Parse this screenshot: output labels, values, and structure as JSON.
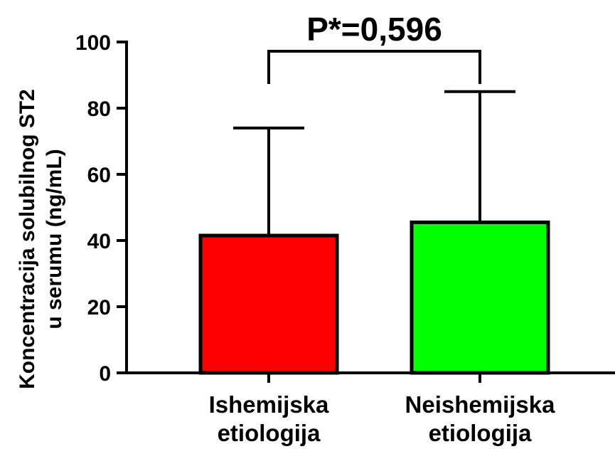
{
  "chart_data": {
    "type": "bar",
    "ylabel_lines": [
      "Koncentracija solubilnog ST2",
      "u serumu (ng/mL)"
    ],
    "categories": [
      {
        "lines": [
          "Ishemijska",
          "etiologija"
        ]
      },
      {
        "lines": [
          "Neishemijska",
          "etiologija"
        ]
      }
    ],
    "values": [
      41.5,
      45.5
    ],
    "error_upper": [
      74,
      85
    ],
    "colors": [
      "#ff0000",
      "#00ff00"
    ],
    "ylim": [
      0,
      100
    ],
    "yticks": [
      "0",
      "20",
      "40",
      "60",
      "80",
      "100"
    ],
    "ytick_values": [
      0,
      20,
      40,
      60,
      80,
      100
    ],
    "grid": false,
    "annotation": {
      "text": "P*=0,596",
      "between": [
        0,
        1
      ]
    }
  }
}
